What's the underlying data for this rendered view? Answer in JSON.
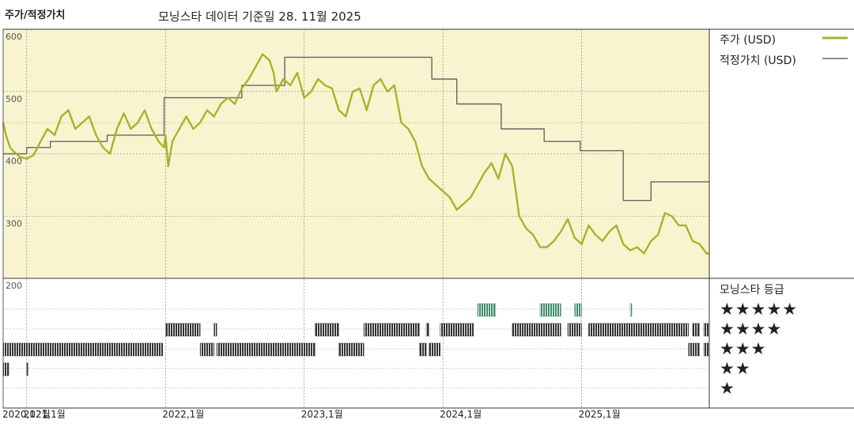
{
  "header": {
    "title": "주가/적정가치",
    "subtitle": "모닝스타 데이터 기준일 28. 11월 2025"
  },
  "legend": {
    "price_label": "주가 (USD)",
    "fair_label": "적정가치 (USD)",
    "rating_title": "모닝스타 등급",
    "star_rows": [
      "★★★★★",
      "★★★★",
      "★★★",
      "★★",
      "★"
    ]
  },
  "colors": {
    "price": "#aab22a",
    "fair": "#666666",
    "bg_top": "#f8f4cf",
    "rating_dark": "#333333",
    "rating_green": "#3f8a6a"
  },
  "chart_data": [
    {
      "type": "line",
      "title": "주가/적정가치",
      "ylim": [
        200,
        600
      ],
      "y_ticks": [
        "600",
        "500",
        "400",
        "300",
        "200"
      ],
      "x_ticks": [
        {
          "t": 2021.0,
          "label": "2021,1월"
        },
        {
          "t": 2022.0,
          "label": "2022,1월"
        },
        {
          "t": 2023.0,
          "label": "2023,1월"
        },
        {
          "t": 2024.0,
          "label": "2024,1월"
        },
        {
          "t": 2025.0,
          "label": "2025,1월"
        }
      ],
      "x_range": [
        2020.83,
        2025.92
      ],
      "x_extra_label": {
        "t": 2020.83,
        "label": "2020,12월"
      },
      "series": [
        {
          "name": "주가 (USD)",
          "x": [
            2020.83,
            2020.85,
            2020.88,
            2020.9,
            2020.95,
            2021.0,
            2021.05,
            2021.1,
            2021.15,
            2021.2,
            2021.25,
            2021.3,
            2021.35,
            2021.4,
            2021.45,
            2021.5,
            2021.55,
            2021.6,
            2021.65,
            2021.7,
            2021.75,
            2021.8,
            2021.85,
            2021.9,
            2021.95,
            2021.99,
            2022.0,
            2022.02,
            2022.05,
            2022.1,
            2022.15,
            2022.2,
            2022.25,
            2022.3,
            2022.35,
            2022.4,
            2022.45,
            2022.5,
            2022.55,
            2022.6,
            2022.65,
            2022.7,
            2022.75,
            2022.78,
            2022.8,
            2022.85,
            2022.9,
            2022.95,
            2023.0,
            2023.05,
            2023.1,
            2023.15,
            2023.2,
            2023.25,
            2023.3,
            2023.35,
            2023.4,
            2023.45,
            2023.5,
            2023.55,
            2023.6,
            2023.65,
            2023.7,
            2023.75,
            2023.8,
            2023.85,
            2023.9,
            2023.95,
            2024.0,
            2024.05,
            2024.1,
            2024.15,
            2024.2,
            2024.25,
            2024.3,
            2024.35,
            2024.4,
            2024.45,
            2024.5,
            2024.55,
            2024.6,
            2024.65,
            2024.7,
            2024.75,
            2024.8,
            2024.85,
            2024.9,
            2024.95,
            2025.0,
            2025.05,
            2025.1,
            2025.15,
            2025.2,
            2025.25,
            2025.3,
            2025.35,
            2025.4,
            2025.45,
            2025.5,
            2025.55,
            2025.6,
            2025.65,
            2025.7,
            2025.75,
            2025.8,
            2025.85,
            2025.9,
            2025.92
          ],
          "values": [
            450,
            430,
            410,
            405,
            395,
            392,
            398,
            420,
            440,
            430,
            460,
            470,
            440,
            450,
            460,
            430,
            410,
            400,
            440,
            465,
            440,
            450,
            470,
            440,
            420,
            410,
            430,
            380,
            420,
            440,
            460,
            440,
            450,
            470,
            460,
            480,
            490,
            480,
            505,
            520,
            540,
            560,
            550,
            530,
            500,
            520,
            510,
            530,
            490,
            500,
            520,
            510,
            505,
            470,
            460,
            500,
            505,
            470,
            510,
            520,
            500,
            510,
            450,
            440,
            420,
            380,
            360,
            350,
            340,
            330,
            310,
            320,
            330,
            350,
            370,
            385,
            360,
            400,
            380,
            300,
            280,
            270,
            250,
            250,
            260,
            275,
            295,
            265,
            255,
            285,
            270,
            260,
            275,
            285,
            255,
            245,
            250,
            240,
            260,
            270,
            305,
            300,
            285,
            285,
            260,
            255,
            240,
            240
          ],
          "color": "#aab22a"
        },
        {
          "name": "적정가치 (USD)",
          "x": [
            2020.83,
            2021.0,
            2021.0,
            2021.17,
            2021.17,
            2021.58,
            2021.58,
            2021.99,
            2021.99,
            2022.55,
            2022.55,
            2022.86,
            2022.86,
            2023.92,
            2023.92,
            2024.1,
            2024.1,
            2024.42,
            2024.42,
            2024.73,
            2024.73,
            2024.99,
            2024.99,
            2025.3,
            2025.3,
            2025.5,
            2025.5,
            2025.92
          ],
          "values": [
            400,
            400,
            410,
            410,
            420,
            420,
            430,
            430,
            490,
            490,
            510,
            510,
            555,
            555,
            520,
            520,
            480,
            480,
            440,
            440,
            420,
            420,
            405,
            405,
            325,
            325,
            355,
            355
          ],
          "color": "#666666"
        }
      ]
    },
    {
      "type": "rating",
      "title": "모닝스타 등급",
      "rows": [
        {
          "stars": 5,
          "segments": [
            [
              2024.25,
              2024.38
            ],
            [
              2024.7,
              2024.85
            ],
            [
              2024.95,
              2025.0
            ],
            [
              2025.35,
              2025.36
            ]
          ],
          "color": "#3f8a6a"
        },
        {
          "stars": 4,
          "segments": [
            [
              2022.0,
              2022.25
            ],
            [
              2022.35,
              2022.37
            ],
            [
              2023.08,
              2023.25
            ],
            [
              2023.43,
              2023.83
            ],
            [
              2023.88,
              2023.9
            ],
            [
              2023.98,
              2024.22
            ],
            [
              2024.5,
              2024.85
            ],
            [
              2024.9,
              2025.0
            ],
            [
              2025.05,
              2025.77
            ],
            [
              2025.8,
              2025.85
            ],
            [
              2025.88,
              2025.92
            ]
          ],
          "color": "#333333"
        },
        {
          "stars": 3,
          "segments": [
            [
              2020.83,
              2021.98
            ],
            [
              2022.25,
              2022.35
            ],
            [
              2022.37,
              2023.08
            ],
            [
              2023.25,
              2023.43
            ],
            [
              2023.83,
              2023.88
            ],
            [
              2023.9,
              2023.98
            ],
            [
              2025.77,
              2025.85
            ],
            [
              2025.88,
              2025.92
            ]
          ],
          "color": "#333333"
        },
        {
          "stars": 2,
          "segments": [
            [
              2020.83,
              2020.87
            ],
            [
              2021.0,
              2021.01
            ]
          ],
          "color": "#333333"
        }
      ]
    }
  ]
}
